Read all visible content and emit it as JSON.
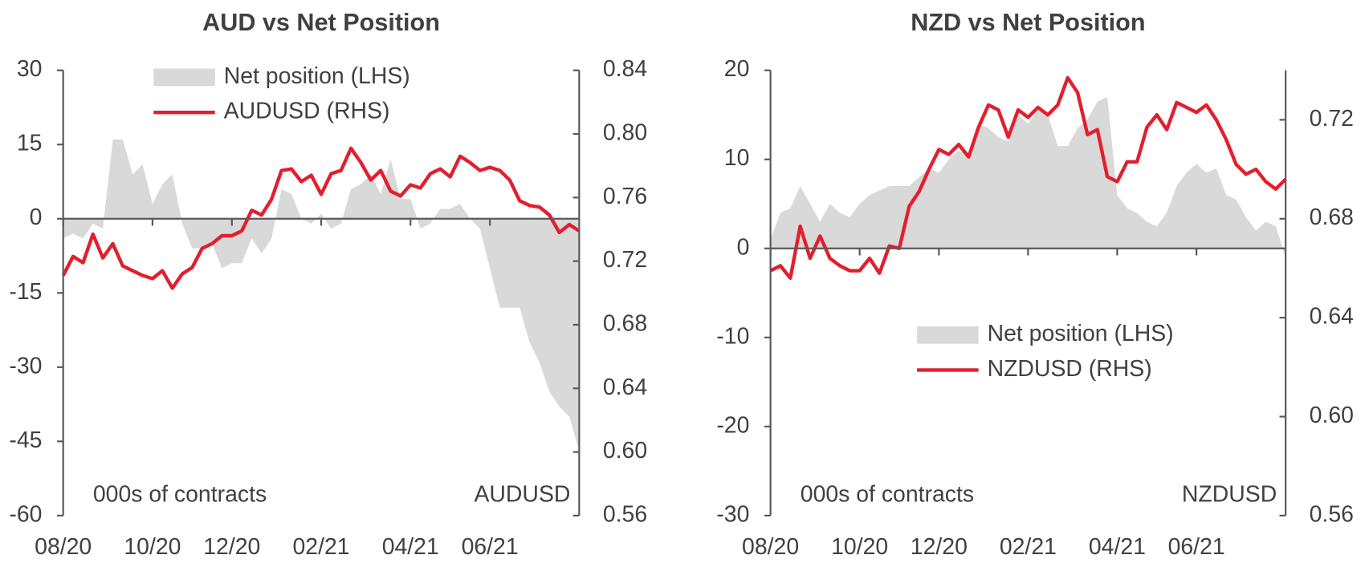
{
  "chart_data": [
    {
      "type": "area_line",
      "title": "AUD vs Net Position",
      "categories": [
        "08/20",
        null,
        null,
        null,
        null,
        null,
        null,
        null,
        null,
        "10/20",
        null,
        null,
        null,
        null,
        null,
        null,
        null,
        "12/20",
        null,
        null,
        null,
        null,
        null,
        null,
        null,
        null,
        "02/21",
        null,
        null,
        null,
        null,
        null,
        null,
        null,
        null,
        "04/21",
        null,
        null,
        null,
        null,
        null,
        null,
        null,
        "06/21",
        null,
        null,
        null,
        null,
        null,
        null,
        null,
        null,
        null
      ],
      "series": [
        {
          "name": "Net position (LHS)",
          "type": "area",
          "color": "#d9d9d9",
          "values": [
            -4,
            -3,
            -4,
            -1,
            -2,
            16,
            16,
            9,
            11,
            3,
            7,
            9,
            -1,
            -6,
            -6,
            -5,
            -10,
            -9,
            -9,
            -4,
            -7,
            -4,
            6,
            5,
            0,
            -1,
            1,
            -2,
            -1,
            6,
            7,
            9,
            5,
            12,
            4,
            4,
            -2,
            -1,
            2,
            2,
            3,
            0,
            -2,
            -10,
            -18,
            -18,
            -18,
            -25,
            -29,
            -35,
            -38,
            -40,
            -47
          ]
        },
        {
          "name": "AUDUSD (RHS)",
          "type": "line",
          "axis": "y2",
          "color": "#e31e2d",
          "values": [
            0.711,
            0.723,
            0.719,
            0.737,
            0.722,
            0.731,
            0.717,
            0.714,
            0.711,
            0.709,
            0.714,
            0.703,
            0.712,
            0.716,
            0.728,
            0.731,
            0.736,
            0.736,
            0.739,
            0.752,
            0.749,
            0.759,
            0.777,
            0.778,
            0.77,
            0.774,
            0.762,
            0.775,
            0.777,
            0.791,
            0.782,
            0.771,
            0.777,
            0.764,
            0.761,
            0.768,
            0.766,
            0.775,
            0.778,
            0.773,
            0.786,
            0.782,
            0.777,
            0.779,
            0.777,
            0.771,
            0.758,
            0.755,
            0.754,
            0.749,
            0.738,
            0.743,
            0.739
          ]
        }
      ],
      "ylim": [
        -60,
        30
      ],
      "yticks": [
        -60,
        -45,
        -30,
        -15,
        0,
        15,
        30
      ],
      "y2lim": [
        0.56,
        0.84
      ],
      "y2ticks": [
        0.56,
        {
          "value": 0.6,
          "label": "0.60"
        },
        0.64,
        0.68,
        0.72,
        0.76,
        {
          "value": 0.8,
          "label": "0.80"
        },
        0.84
      ],
      "annotations": [
        "000s of contracts",
        "AUDUSD"
      ],
      "legend": "upper center"
    },
    {
      "type": "area_line",
      "title": "NZD vs Net Position",
      "categories": [
        "08/20",
        null,
        null,
        null,
        null,
        null,
        null,
        null,
        null,
        "10/20",
        null,
        null,
        null,
        null,
        null,
        null,
        null,
        "12/20",
        null,
        null,
        null,
        null,
        null,
        null,
        null,
        null,
        "02/21",
        null,
        null,
        null,
        null,
        null,
        null,
        null,
        null,
        "04/21",
        null,
        null,
        null,
        null,
        null,
        null,
        null,
        "06/21",
        null,
        null,
        null,
        null,
        null,
        null,
        null,
        null,
        null
      ],
      "series": [
        {
          "name": "Net position (LHS)",
          "type": "area",
          "color": "#d9d9d9",
          "values": [
            1,
            4,
            4.5,
            7,
            5,
            3,
            5,
            4,
            3.5,
            5,
            6,
            6.5,
            7,
            7,
            7,
            8,
            9,
            8.5,
            10,
            11,
            10.5,
            14,
            13.5,
            12.5,
            12,
            15,
            14,
            15.5,
            15,
            11.5,
            11.5,
            13.5,
            14.5,
            16.5,
            17,
            6,
            4.5,
            4,
            3,
            2.5,
            4,
            7,
            8.5,
            9.5,
            8.5,
            9,
            6,
            5.5,
            3.5,
            2,
            3,
            2.5,
            -1
          ]
        },
        {
          "name": "NZDUSD (RHS)",
          "type": "line",
          "axis": "y2",
          "color": "#e31e2d",
          "values": [
            0.659,
            0.661,
            0.656,
            0.677,
            0.664,
            0.673,
            0.664,
            0.661,
            0.659,
            0.659,
            0.664,
            0.658,
            0.669,
            0.668,
            0.685,
            0.691,
            0.7,
            0.708,
            0.706,
            0.71,
            0.705,
            0.717,
            0.726,
            0.724,
            0.713,
            0.724,
            0.721,
            0.725,
            0.722,
            0.726,
            0.737,
            0.731,
            0.714,
            0.716,
            0.697,
            0.695,
            0.703,
            0.703,
            0.717,
            0.722,
            0.716,
            0.727,
            0.725,
            0.723,
            0.726,
            0.72,
            0.712,
            0.702,
            0.698,
            0.7,
            0.695,
            0.692,
            0.696
          ]
        }
      ],
      "ylim": [
        -30,
        20
      ],
      "yticks": [
        -30,
        -20,
        -10,
        0,
        10,
        20
      ],
      "y2lim": [
        0.56,
        0.74
      ],
      "y2ticks": [
        0.56,
        {
          "value": 0.6,
          "label": "0.60"
        },
        0.64,
        0.68,
        0.72
      ],
      "annotations": [
        "000s of contracts",
        "NZDUSD"
      ],
      "legend": "lower center"
    }
  ]
}
